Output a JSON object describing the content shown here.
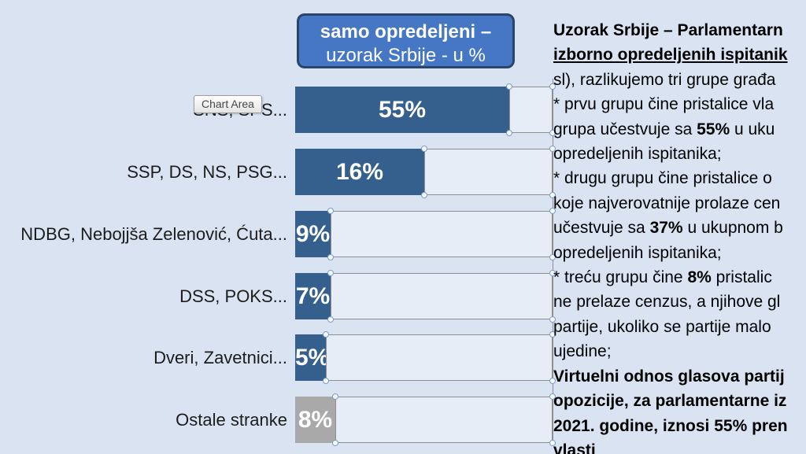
{
  "title_box": {
    "line1": "samo opredeljeni –",
    "line2": "uzorak Srbije - u %"
  },
  "tooltip": {
    "label": "Chart Area"
  },
  "chart_data": {
    "type": "bar",
    "orientation": "horizontal",
    "title": "samo opredeljeni – uzorak Srbije - u %",
    "categories": [
      "SNS, SPS...",
      "SSP, DS, NS, PSG...",
      "NDBG, Nebojjša Zelenović, Ćuta...",
      "DSS, POKS...",
      "Dveri, Zavetnici...",
      "Ostale stranke"
    ],
    "values": [
      55,
      16,
      9,
      7,
      5,
      8
    ],
    "value_labels": [
      "55%",
      "16%",
      "9%",
      "7%",
      "5%",
      "8%"
    ],
    "bar_colors": [
      "#35608e",
      "#35608e",
      "#35608e",
      "#35608e",
      "#35608e",
      "#a9a9a9"
    ],
    "xlim": [
      0,
      100
    ],
    "grid": false,
    "data_labels": "inside, white bold",
    "legend": "none",
    "notes": "remainder of each row outlined to 100% with selection handles; gray bar = Ostale stranke"
  },
  "colors": {
    "background": "#d9e3f1",
    "bar_blue": "#35608e",
    "bar_gray": "#a9a9a9",
    "title_fill": "#4677c5",
    "title_border": "#2b4469",
    "remainder_fill": "#e7edf7",
    "remainder_border": "#8f8f8f"
  },
  "right_panel": {
    "lines": [
      [
        {
          "t": "Uzorak Srbije – Parlamentarn",
          "b": true
        }
      ],
      [
        {
          "t": "izborno opredeljenih ispitanik",
          "b": true,
          "u": true
        }
      ],
      [
        {
          "t": "sl), razlikujemo tri grupe građa"
        }
      ],
      [
        {
          "t": "* prvu grupu čine pristalice vla"
        }
      ],
      [
        {
          "t": "grupa učestvuje sa "
        },
        {
          "t": "55%",
          "b": true
        },
        {
          "t": " u  uku"
        }
      ],
      [
        {
          "t": "opredeljenih ispitanika;"
        }
      ],
      [
        {
          "t": "* drugu grupu čine pristalice o"
        }
      ],
      [
        {
          "t": "koje najverovatnije prolaze cen"
        }
      ],
      [
        {
          "t": "učestvuje sa "
        },
        {
          "t": "37%",
          "b": true
        },
        {
          "t": " u ukupnom b"
        }
      ],
      [
        {
          "t": "opredeljenih ispitanika;"
        }
      ],
      [
        {
          "t": "* treću grupu čine "
        },
        {
          "t": "8%",
          "b": true
        },
        {
          "t": " pristalic"
        }
      ],
      [
        {
          "t": "ne prelaze cenzus, a njihove gl"
        }
      ],
      [
        {
          "t": "partije, ukoliko se partije malo"
        }
      ],
      [
        {
          "t": "ujedine;"
        }
      ],
      [
        {
          "t": "Virtuelni odnos glasova partij",
          "b": true
        }
      ],
      [
        {
          "t": "opozicije, za parlamentarne iz",
          "b": true
        }
      ],
      [
        {
          "t": "2021. godine, iznosi 55% pren",
          "b": true
        }
      ],
      [
        {
          "t": "vlasti",
          "b": true
        }
      ]
    ]
  }
}
